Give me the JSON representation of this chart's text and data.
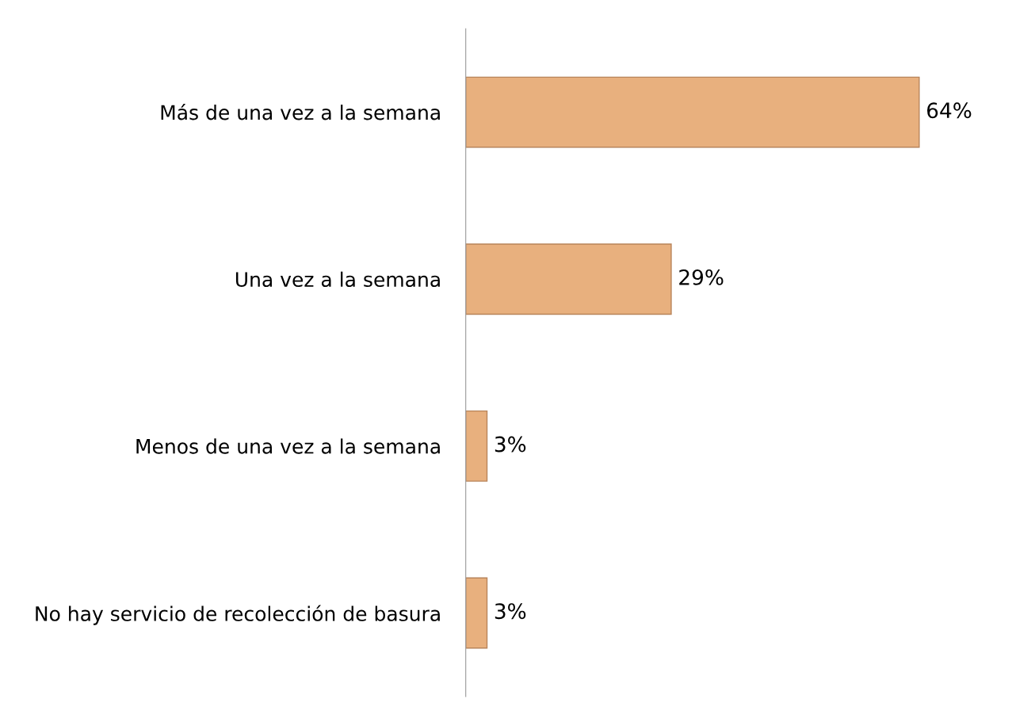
{
  "chart_data": {
    "type": "bar",
    "orientation": "horizontal",
    "categories": [
      "Más de una vez a la semana",
      "Una vez a la semana",
      "Menos de una vez a la semana",
      "No hay servicio de recolección de basura"
    ],
    "values": [
      64,
      29,
      3,
      3
    ],
    "value_labels": [
      "64%",
      "29%",
      "3%",
      "3%"
    ],
    "color": "#e8b07e",
    "tick_labels": "y",
    "grid": false
  }
}
